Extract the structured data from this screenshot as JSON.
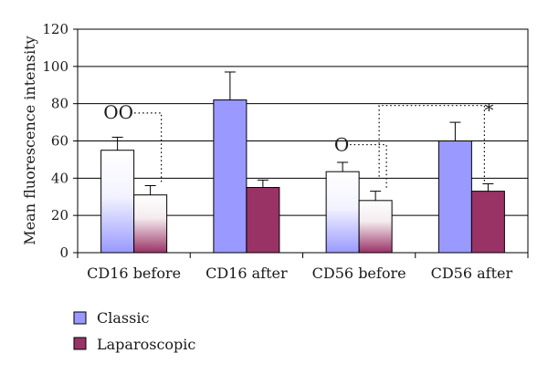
{
  "chart_data": {
    "type": "bar",
    "ylabel": "Mean fluorescence intensity",
    "xlabel": "",
    "ylim": [
      0,
      120
    ],
    "yticks": [
      0,
      20,
      40,
      60,
      80,
      100,
      120
    ],
    "grid": true,
    "legend_position": "bottom-left",
    "categories": [
      "CD16 before",
      "CD16 after",
      "CD56 before",
      "CD56 after"
    ],
    "series": [
      {
        "name": "Classic",
        "color": "#9999ff",
        "values": [
          55,
          82,
          43.5,
          60
        ],
        "errors": [
          7,
          15,
          5,
          10
        ],
        "fill_styles": [
          "gradient",
          "solid",
          "gradient",
          "solid"
        ]
      },
      {
        "name": "Laparoscopic",
        "color": "#993366",
        "values": [
          31,
          35,
          28,
          33
        ],
        "errors": [
          5,
          4,
          5,
          4
        ],
        "fill_styles": [
          "gradient",
          "solid",
          "gradient",
          "solid"
        ]
      }
    ],
    "annotations": [
      {
        "symbol": "OO",
        "category": "CD16 before"
      },
      {
        "symbol": "O",
        "category": "CD56 before"
      },
      {
        "symbol": "*",
        "category": "CD56 after"
      }
    ]
  }
}
